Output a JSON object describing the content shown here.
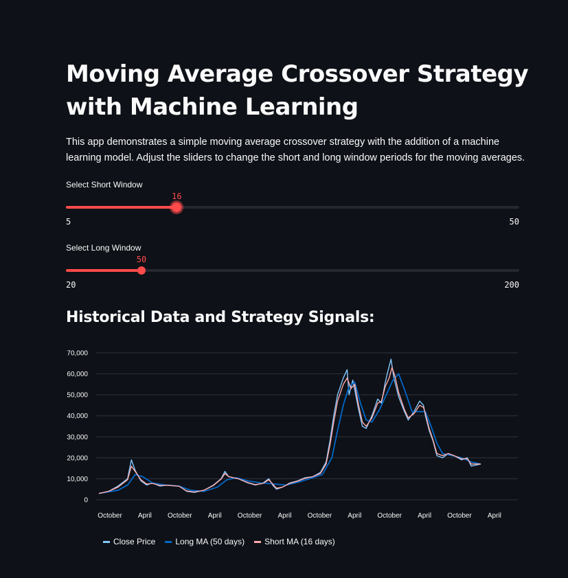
{
  "header": {
    "title": "Moving Average Crossover Strategy with Machine Learning",
    "description": "This app demonstrates a simple moving average crossover strategy with the addition of a machine learning model. Adjust the sliders to change the short and long window periods for the moving averages."
  },
  "sliders": {
    "short": {
      "label": "Select Short Window",
      "value": 16,
      "min": 5,
      "max": 50
    },
    "long": {
      "label": "Select Long Window",
      "value": 50,
      "min": 20,
      "max": 200
    }
  },
  "section": {
    "title": "Historical Data and Strategy Signals:"
  },
  "colors": {
    "accent": "#ff4b4b",
    "close": "#83c9ff",
    "long_ma": "#0068c9",
    "short_ma": "#ffabab"
  },
  "chart_data": {
    "type": "line",
    "x_tick_labels": [
      "October",
      "April",
      "October",
      "April",
      "October",
      "April",
      "October",
      "April",
      "October",
      "April",
      "October",
      "April"
    ],
    "y_ticks": [
      0,
      10000,
      20000,
      30000,
      40000,
      50000,
      60000,
      70000
    ],
    "y_tick_labels": [
      "0",
      "10,000",
      "20,000",
      "30,000",
      "40,000",
      "50,000",
      "60,000",
      "70,000"
    ],
    "ylim": [
      0,
      70000
    ],
    "grid": true,
    "legend_position": "bottom",
    "series": [
      {
        "name": "Close Price",
        "color": "#83c9ff",
        "points": [
          [
            0,
            3000
          ],
          [
            0.5,
            4000
          ],
          [
            1,
            6500
          ],
          [
            1.5,
            10000
          ],
          [
            1.7,
            19000
          ],
          [
            1.9,
            14000
          ],
          [
            2.2,
            9000
          ],
          [
            2.5,
            7000
          ],
          [
            2.8,
            8000
          ],
          [
            3.2,
            6500
          ],
          [
            3.6,
            7000
          ],
          [
            4.2,
            6500
          ],
          [
            4.6,
            4000
          ],
          [
            5,
            3500
          ],
          [
            5.5,
            4500
          ],
          [
            6,
            7000
          ],
          [
            6.4,
            10000
          ],
          [
            6.6,
            13500
          ],
          [
            6.8,
            11000
          ],
          [
            7.3,
            10000
          ],
          [
            7.8,
            8000
          ],
          [
            8.2,
            7000
          ],
          [
            8.6,
            8000
          ],
          [
            8.9,
            10000
          ],
          [
            9.1,
            7000
          ],
          [
            9.3,
            5000
          ],
          [
            9.6,
            6000
          ],
          [
            10,
            8000
          ],
          [
            10.4,
            9000
          ],
          [
            10.8,
            10500
          ],
          [
            11.2,
            11000
          ],
          [
            11.6,
            13000
          ],
          [
            11.9,
            18000
          ],
          [
            12.1,
            28000
          ],
          [
            12.3,
            40000
          ],
          [
            12.5,
            50000
          ],
          [
            12.8,
            58000
          ],
          [
            13,
            62000
          ],
          [
            13.1,
            50000
          ],
          [
            13.3,
            57000
          ],
          [
            13.6,
            43000
          ],
          [
            13.8,
            35000
          ],
          [
            14,
            34000
          ],
          [
            14.3,
            40000
          ],
          [
            14.6,
            48000
          ],
          [
            14.8,
            46000
          ],
          [
            15,
            56000
          ],
          [
            15.1,
            60000
          ],
          [
            15.3,
            67000
          ],
          [
            15.45,
            58000
          ],
          [
            15.7,
            49000
          ],
          [
            16,
            42000
          ],
          [
            16.2,
            38000
          ],
          [
            16.5,
            42000
          ],
          [
            16.8,
            47000
          ],
          [
            17,
            45000
          ],
          [
            17.1,
            40000
          ],
          [
            17.3,
            33000
          ],
          [
            17.5,
            28000
          ],
          [
            17.7,
            21000
          ],
          [
            18,
            20000
          ],
          [
            18.3,
            22000
          ],
          [
            18.6,
            21000
          ],
          [
            19,
            19000
          ],
          [
            19.3,
            20000
          ],
          [
            19.5,
            16000
          ],
          [
            20,
            17000
          ]
        ]
      },
      {
        "name": "Long MA (50 days)",
        "color": "#0068c9",
        "points": [
          [
            0,
            3000
          ],
          [
            1,
            4500
          ],
          [
            1.5,
            7000
          ],
          [
            1.9,
            12000
          ],
          [
            2.3,
            11000
          ],
          [
            2.8,
            8000
          ],
          [
            3.5,
            7000
          ],
          [
            4.2,
            6500
          ],
          [
            4.8,
            4500
          ],
          [
            5.5,
            4000
          ],
          [
            6.2,
            6000
          ],
          [
            6.7,
            9500
          ],
          [
            7.2,
            10500
          ],
          [
            7.8,
            9000
          ],
          [
            8.5,
            8000
          ],
          [
            9.2,
            7500
          ],
          [
            9.8,
            7000
          ],
          [
            10.5,
            8500
          ],
          [
            11.2,
            10500
          ],
          [
            11.7,
            12000
          ],
          [
            12.2,
            20000
          ],
          [
            12.5,
            33000
          ],
          [
            12.8,
            45000
          ],
          [
            13.1,
            54000
          ],
          [
            13.4,
            56000
          ],
          [
            13.7,
            46000
          ],
          [
            14,
            38000
          ],
          [
            14.3,
            37000
          ],
          [
            14.7,
            43000
          ],
          [
            15,
            49000
          ],
          [
            15.4,
            57000
          ],
          [
            15.7,
            60000
          ],
          [
            16.1,
            50000
          ],
          [
            16.4,
            42000
          ],
          [
            16.8,
            42000
          ],
          [
            17.1,
            42000
          ],
          [
            17.4,
            35000
          ],
          [
            17.7,
            27000
          ],
          [
            18,
            22000
          ],
          [
            18.5,
            21000
          ],
          [
            19,
            20000
          ],
          [
            19.5,
            18000
          ],
          [
            20,
            17000
          ]
        ]
      },
      {
        "name": "Short MA (16 days)",
        "color": "#ffabab",
        "points": [
          [
            0,
            3000
          ],
          [
            0.5,
            4000
          ],
          [
            1,
            6000
          ],
          [
            1.5,
            9500
          ],
          [
            1.7,
            16000
          ],
          [
            1.9,
            13500
          ],
          [
            2.2,
            9500
          ],
          [
            2.5,
            7500
          ],
          [
            2.8,
            7800
          ],
          [
            3.2,
            6800
          ],
          [
            3.6,
            6900
          ],
          [
            4.2,
            6400
          ],
          [
            4.6,
            4200
          ],
          [
            5,
            3700
          ],
          [
            5.5,
            4500
          ],
          [
            6,
            6800
          ],
          [
            6.4,
            9800
          ],
          [
            6.6,
            12500
          ],
          [
            6.8,
            11000
          ],
          [
            7.3,
            10000
          ],
          [
            7.8,
            8200
          ],
          [
            8.2,
            7200
          ],
          [
            8.6,
            7800
          ],
          [
            8.9,
            9500
          ],
          [
            9.1,
            7500
          ],
          [
            9.3,
            5500
          ],
          [
            9.6,
            6000
          ],
          [
            10,
            7800
          ],
          [
            10.4,
            8800
          ],
          [
            10.8,
            10200
          ],
          [
            11.2,
            11000
          ],
          [
            11.6,
            12500
          ],
          [
            11.9,
            17000
          ],
          [
            12.1,
            26000
          ],
          [
            12.3,
            37000
          ],
          [
            12.5,
            47000
          ],
          [
            12.8,
            55000
          ],
          [
            13,
            58000
          ],
          [
            13.2,
            53000
          ],
          [
            13.4,
            55000
          ],
          [
            13.6,
            45000
          ],
          [
            13.8,
            37000
          ],
          [
            14,
            35000
          ],
          [
            14.3,
            39000
          ],
          [
            14.6,
            46000
          ],
          [
            14.8,
            47000
          ],
          [
            15,
            54000
          ],
          [
            15.2,
            58000
          ],
          [
            15.35,
            63000
          ],
          [
            15.5,
            59000
          ],
          [
            15.7,
            51000
          ],
          [
            16,
            43000
          ],
          [
            16.2,
            39000
          ],
          [
            16.5,
            41000
          ],
          [
            16.8,
            45000
          ],
          [
            17,
            44000
          ],
          [
            17.1,
            41000
          ],
          [
            17.3,
            34000
          ],
          [
            17.5,
            28500
          ],
          [
            17.7,
            22000
          ],
          [
            18,
            21000
          ],
          [
            18.3,
            22000
          ],
          [
            18.6,
            21000
          ],
          [
            19,
            19500
          ],
          [
            19.3,
            19500
          ],
          [
            19.5,
            17000
          ],
          [
            20,
            17000
          ]
        ]
      }
    ]
  }
}
